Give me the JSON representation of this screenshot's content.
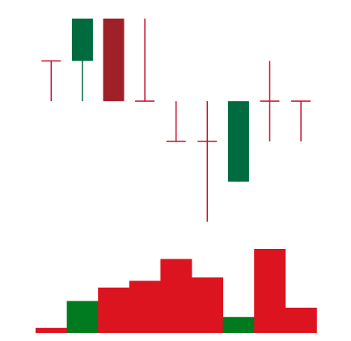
{
  "chart_data": [
    {
      "type": "candlestick",
      "title": "",
      "xlabel": "",
      "ylabel": "",
      "grid": false,
      "legend": "none",
      "y_scale": "linear",
      "ylim": [
        0,
        100
      ],
      "colors": {
        "up": "#006b3f",
        "down": "#a0202a",
        "wick_down": "#c8102e"
      },
      "candles": [
        {
          "open": 80,
          "high": 80,
          "low": 61,
          "close": 80,
          "direction": "down"
        },
        {
          "open": 80,
          "high": 100,
          "low": 61,
          "close": 100,
          "direction": "up"
        },
        {
          "open": 100,
          "high": 100,
          "low": 61,
          "close": 61,
          "direction": "down"
        },
        {
          "open": 61,
          "high": 100,
          "low": 61,
          "close": 61,
          "direction": "down"
        },
        {
          "open": 42,
          "high": 61,
          "low": 42,
          "close": 42,
          "direction": "down"
        },
        {
          "open": 42,
          "high": 61,
          "low": 4,
          "close": 42,
          "direction": "down"
        },
        {
          "open": 23,
          "high": 61,
          "low": 23,
          "close": 61,
          "direction": "up"
        },
        {
          "open": 61,
          "high": 80,
          "low": 42,
          "close": 61,
          "direction": "down"
        },
        {
          "open": 61,
          "high": 61,
          "low": 42,
          "close": 61,
          "direction": "down"
        }
      ]
    },
    {
      "type": "bar",
      "title": "",
      "xlabel": "",
      "ylabel": "",
      "grid": false,
      "legend": "none",
      "ylim": [
        0,
        100
      ],
      "colors": {
        "up": "#007a1f",
        "down": "#dc1420"
      },
      "values": [
        6,
        38,
        54,
        62,
        88,
        66,
        19,
        100,
        30
      ],
      "directions": [
        "down",
        "up",
        "down",
        "down",
        "down",
        "down",
        "up",
        "down",
        "down"
      ]
    }
  ]
}
